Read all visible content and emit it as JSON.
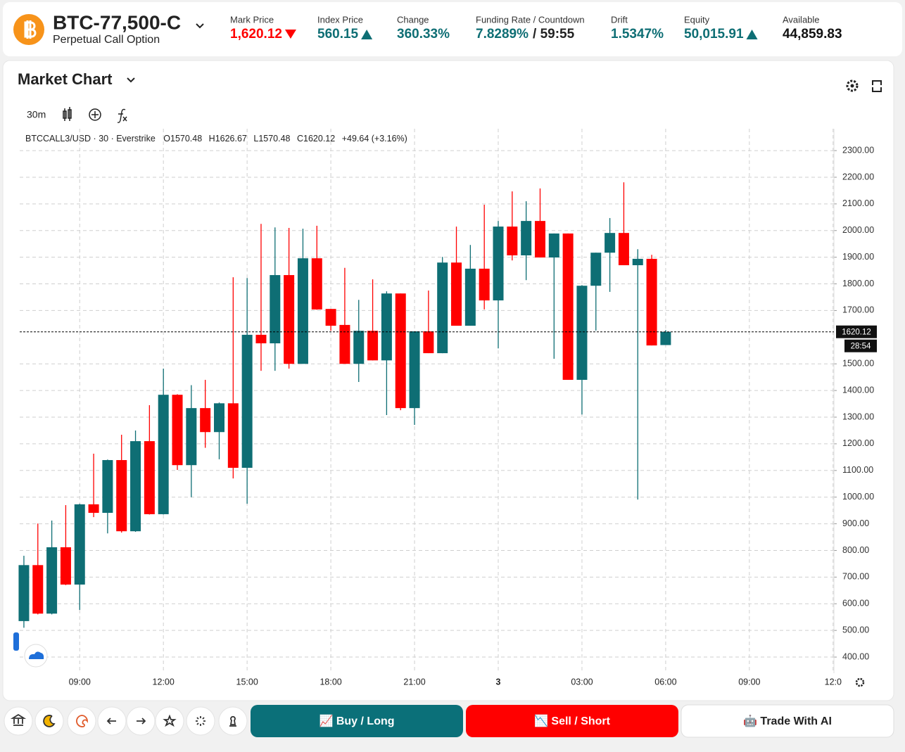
{
  "header": {
    "symbol": "BTC-77,500-C",
    "subtitle": "Perpetual Call Option",
    "stats": [
      {
        "label": "Mark Price",
        "value": "1,620.12",
        "color": "#ff0000",
        "arrow": "down"
      },
      {
        "label": "Index Price",
        "value": "560.15",
        "color": "#0e6e74",
        "arrow": "up"
      },
      {
        "label": "Change",
        "value": "360.33%",
        "color": "#0e6e74"
      },
      {
        "label": "Funding Rate / Countdown",
        "value": "7.8289%",
        "suffix": "/ 59:55",
        "color": "#0e6e74"
      },
      {
        "label": "Drift",
        "value": "1.5347%",
        "color": "#0e6e74"
      },
      {
        "label": "Equity",
        "value": "50,015.91",
        "color": "#0e6e74",
        "arrow": "up"
      },
      {
        "label": "Available",
        "value": "44,859.83",
        "color": "#111111"
      }
    ]
  },
  "chart_data": {
    "type": "candlestick",
    "title": "Market Chart",
    "interval": "30m",
    "legend": {
      "symbol": "BTCCALL3/USD · 30 · Everstrike",
      "open": "O1570.48",
      "high": "H1626.67",
      "low": "L1570.48",
      "close": "C1620.12",
      "change": "+49.64 (+3.16%)"
    },
    "up_color": "#0e6e74",
    "down_color": "#ff0000",
    "grid": true,
    "x": [
      7,
      7.5,
      8,
      8.5,
      9,
      9.5,
      10,
      10.5,
      11,
      11.5,
      12,
      12.5,
      13,
      13.5,
      14,
      14.5,
      15,
      15.5,
      16,
      16.5,
      17,
      17.5,
      18,
      18.5,
      19,
      19.5,
      20,
      20.5,
      21,
      21.5,
      22,
      22.5,
      23,
      23.5,
      24,
      24.5,
      25,
      25.5,
      26,
      26.5,
      27,
      27.5,
      28,
      28.5,
      29,
      29.5,
      30
    ],
    "open": [
      535,
      745,
      563,
      812,
      672,
      973,
      941,
      1139,
      872,
      1210,
      936,
      1384,
      1120,
      1334,
      1244,
      1352,
      1110,
      1609,
      1577,
      1833,
      1500,
      1896,
      1706,
      1646,
      1500,
      1624,
      1513,
      1764,
      1334,
      1622,
      1540,
      1880,
      1643,
      1857,
      1738,
      2015,
      1907,
      2036,
      1899,
      1989,
      1440,
      1793,
      1917,
      1991,
      1870,
      1894,
      1570.48
    ],
    "high": [
      780,
      901,
      912,
      970,
      975,
      1163,
      1141,
      1234,
      1250,
      1345,
      1482,
      1386,
      1420,
      1440,
      1355,
      1825,
      1822,
      2025,
      2012,
      2010,
      2007,
      2018,
      1706,
      1860,
      1740,
      1817,
      1772,
      1764,
      1622,
      1775,
      1901,
      2015,
      1946,
      2097,
      2036,
      2147,
      2110,
      2158,
      1989,
      1989,
      1795,
      1917,
      2047,
      2181,
      1930,
      1909,
      1626.67
    ],
    "low": [
      510,
      560,
      560,
      670,
      577,
      925,
      864,
      867,
      870,
      935,
      935,
      1102,
      1000,
      1185,
      1142,
      1070,
      975,
      1474,
      1474,
      1482,
      1500,
      1703,
      1624,
      1500,
      1432,
      1513,
      1308,
      1326,
      1271,
      1540,
      1540,
      1643,
      1643,
      1704,
      1558,
      1888,
      1814,
      1899,
      1519,
      1440,
      1310,
      1625,
      1770,
      1870,
      991,
      1569,
      1570.48
    ],
    "close": [
      745,
      563,
      812,
      672,
      973,
      941,
      1139,
      872,
      1210,
      936,
      1384,
      1120,
      1334,
      1244,
      1352,
      1110,
      1609,
      1577,
      1833,
      1500,
      1896,
      1704,
      1643,
      1500,
      1624,
      1513,
      1764,
      1334,
      1622,
      1540,
      1880,
      1643,
      1857,
      1738,
      2015,
      1907,
      2036,
      1899,
      1989,
      1440,
      1793,
      1917,
      1991,
      1870,
      1894,
      1569,
      1620.12
    ],
    "xlim": [
      6.85,
      36.03
    ],
    "xticks": [
      {
        "value": 9,
        "label": "09:00"
      },
      {
        "value": 12,
        "label": "12:00"
      },
      {
        "value": 15,
        "label": "15:00"
      },
      {
        "value": 18,
        "label": "18:00"
      },
      {
        "value": 21,
        "label": "21:00"
      },
      {
        "value": 24,
        "label": "3"
      },
      {
        "value": 27,
        "label": "03:00"
      },
      {
        "value": 30,
        "label": "06:00"
      },
      {
        "value": 33,
        "label": "09:00"
      },
      {
        "value": 36,
        "label": "12:0"
      }
    ],
    "ylim": [
      350,
      2382
    ],
    "yticks": [
      {
        "value": 400,
        "label": "400.00"
      },
      {
        "value": 500,
        "label": "500.00"
      },
      {
        "value": 600,
        "label": "600.00"
      },
      {
        "value": 700,
        "label": "700.00"
      },
      {
        "value": 800,
        "label": "800.00"
      },
      {
        "value": 900,
        "label": "900.00"
      },
      {
        "value": 1000,
        "label": "1000.00"
      },
      {
        "value": 1100,
        "label": "1100.00"
      },
      {
        "value": 1200,
        "label": "1200.00"
      },
      {
        "value": 1300,
        "label": "1300.00"
      },
      {
        "value": 1400,
        "label": "1400.00"
      },
      {
        "value": 1500,
        "label": "1500.00"
      },
      {
        "value": 1700,
        "label": "1700.00"
      },
      {
        "value": 1800,
        "label": "1800.00"
      },
      {
        "value": 1900,
        "label": "1900.00"
      },
      {
        "value": 2000,
        "label": "2000.00"
      },
      {
        "value": 2100,
        "label": "2100.00"
      },
      {
        "value": 2200,
        "label": "2200.00"
      },
      {
        "value": 2300,
        "label": "2300.00"
      }
    ],
    "price_line": {
      "value": 1620.12,
      "countdown": "28:54"
    }
  },
  "actions": {
    "buy": "📈 Buy / Long",
    "sell": "📉 Sell / Short",
    "ai": "🤖 Trade With AI"
  }
}
